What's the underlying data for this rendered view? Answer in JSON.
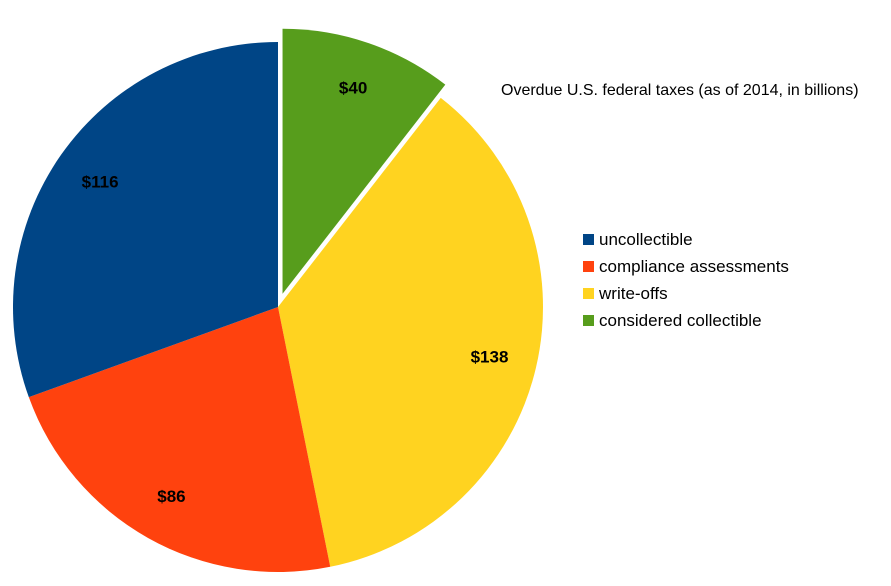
{
  "chart_data": {
    "type": "pie",
    "title": "Overdue U.S. federal taxes (as of 2014, in billions)",
    "categories": [
      "considered collectible",
      "write-offs",
      "compliance assessments",
      "uncollectible"
    ],
    "values": [
      40,
      138,
      86,
      116
    ],
    "data_labels": [
      "$40",
      "$138",
      "$86",
      "$116"
    ],
    "colors": [
      "#579d1c",
      "#ffd320",
      "#ff420e",
      "#004586"
    ],
    "exploded": [
      "considered collectible"
    ],
    "legend": {
      "placement": "right",
      "entries": [
        {
          "label": "uncollectible",
          "color": "#004586"
        },
        {
          "label": "compliance assessments",
          "color": "#ff420e"
        },
        {
          "label": "write-offs",
          "color": "#ffd320"
        },
        {
          "label": "considered collectible",
          "color": "#579d1c"
        }
      ]
    }
  }
}
